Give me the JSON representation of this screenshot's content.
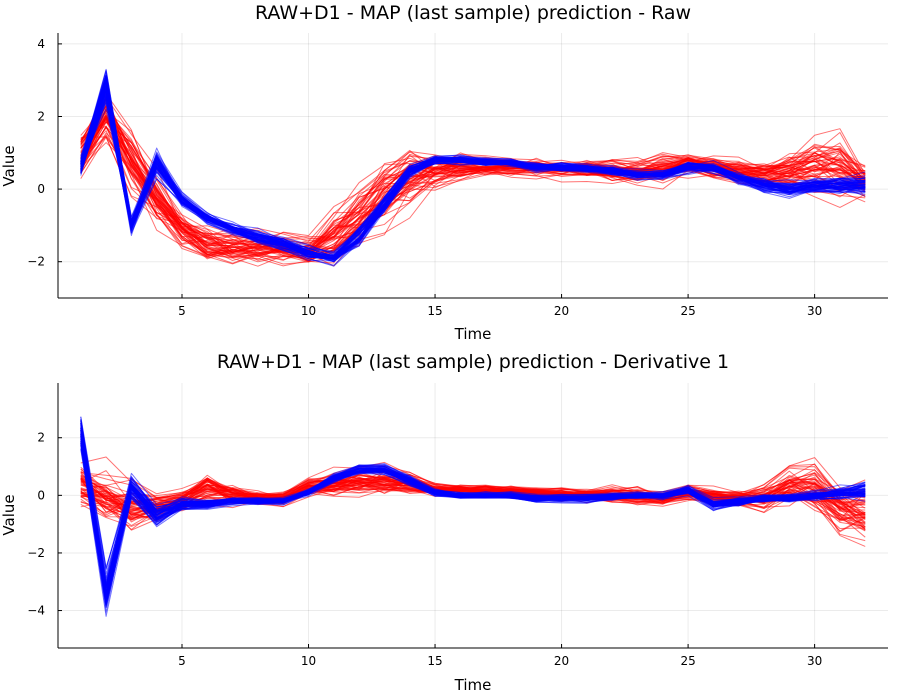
{
  "figure": {
    "background": "#ffffff"
  },
  "colors": {
    "red_series": "#ff0000",
    "blue_series": "#0000ff",
    "grid": "#ebebeb",
    "axis": "#000000"
  },
  "chart_data": [
    {
      "type": "line",
      "title": "RAW+D1 - MAP (last sample) prediction - Raw",
      "xlabel": "Time",
      "ylabel": "Value",
      "xlim": [
        0.1,
        32.9
      ],
      "ylim": [
        -3.0,
        4.3
      ],
      "xticks": [
        5,
        10,
        15,
        20,
        25,
        30
      ],
      "yticks": [
        -2,
        0,
        2,
        4
      ],
      "grid": true,
      "legend": "none",
      "x": [
        1,
        2,
        3,
        4,
        5,
        6,
        7,
        8,
        9,
        10,
        11,
        12,
        13,
        14,
        15,
        16,
        17,
        18,
        19,
        20,
        21,
        22,
        23,
        24,
        25,
        26,
        27,
        28,
        29,
        30,
        31,
        32
      ],
      "series": [
        {
          "color": "#ff0000",
          "count": 60,
          "center": [
            0.9,
            2.0,
            0.8,
            -0.3,
            -1.1,
            -1.5,
            -1.6,
            -1.6,
            -1.6,
            -1.7,
            -1.3,
            -0.7,
            -0.1,
            0.3,
            0.5,
            0.6,
            0.6,
            0.6,
            0.6,
            0.55,
            0.55,
            0.5,
            0.5,
            0.55,
            0.7,
            0.6,
            0.5,
            0.4,
            0.5,
            0.7,
            0.6,
            0.2
          ],
          "spread": [
            0.9,
            0.8,
            1.0,
            0.8,
            0.6,
            0.6,
            0.5,
            0.5,
            0.5,
            0.5,
            0.8,
            1.0,
            1.0,
            0.9,
            0.6,
            0.45,
            0.35,
            0.3,
            0.3,
            0.3,
            0.3,
            0.35,
            0.4,
            0.4,
            0.35,
            0.35,
            0.35,
            0.45,
            0.6,
            0.9,
            1.0,
            0.55
          ]
        },
        {
          "color": "#0000ff",
          "count": 60,
          "center": [
            0.6,
            2.8,
            -1.0,
            0.7,
            -0.3,
            -0.8,
            -1.1,
            -1.3,
            -1.5,
            -1.75,
            -1.9,
            -1.3,
            -0.4,
            0.5,
            0.8,
            0.8,
            0.75,
            0.7,
            0.6,
            0.6,
            0.55,
            0.5,
            0.4,
            0.4,
            0.6,
            0.6,
            0.3,
            0.1,
            0.0,
            0.1,
            0.1,
            0.1
          ],
          "spread": [
            0.4,
            0.7,
            0.3,
            0.5,
            0.25,
            0.2,
            0.2,
            0.2,
            0.2,
            0.2,
            0.2,
            0.35,
            0.35,
            0.2,
            0.15,
            0.15,
            0.15,
            0.15,
            0.15,
            0.15,
            0.15,
            0.15,
            0.15,
            0.15,
            0.2,
            0.2,
            0.2,
            0.25,
            0.25,
            0.25,
            0.3,
            0.35
          ]
        }
      ]
    },
    {
      "type": "line",
      "title": "RAW+D1 - MAP (last sample) prediction - Derivative 1",
      "xlabel": "Time",
      "ylabel": "Value",
      "xlim": [
        0.1,
        32.9
      ],
      "ylim": [
        -5.3,
        3.9
      ],
      "xticks": [
        5,
        10,
        15,
        20,
        25,
        30
      ],
      "yticks": [
        -4,
        -2,
        0,
        2
      ],
      "grid": true,
      "legend": "none",
      "x": [
        1,
        2,
        3,
        4,
        5,
        6,
        7,
        8,
        9,
        10,
        11,
        12,
        13,
        14,
        15,
        16,
        17,
        18,
        19,
        20,
        21,
        22,
        23,
        24,
        25,
        26,
        27,
        28,
        29,
        30,
        31,
        32
      ],
      "series": [
        {
          "color": "#ff0000",
          "count": 60,
          "center": [
            0.4,
            0.0,
            -0.4,
            -0.4,
            -0.2,
            0.2,
            0.0,
            -0.1,
            -0.1,
            0.3,
            0.4,
            0.5,
            0.5,
            0.4,
            0.2,
            0.2,
            0.2,
            0.15,
            0.1,
            0.05,
            0.0,
            0.05,
            0.0,
            -0.1,
            0.1,
            0.0,
            -0.1,
            -0.1,
            0.3,
            0.3,
            -0.4,
            -0.6
          ],
          "spread": [
            1.1,
            1.2,
            1.0,
            0.6,
            0.5,
            0.7,
            0.45,
            0.3,
            0.3,
            0.35,
            0.45,
            0.5,
            0.55,
            0.45,
            0.3,
            0.25,
            0.25,
            0.25,
            0.25,
            0.25,
            0.25,
            0.3,
            0.35,
            0.3,
            0.35,
            0.3,
            0.35,
            0.5,
            0.7,
            0.9,
            1.0,
            1.1
          ]
        },
        {
          "color": "#0000ff",
          "count": 60,
          "center": [
            2.2,
            -3.4,
            0.3,
            -0.7,
            -0.3,
            -0.3,
            -0.2,
            -0.2,
            -0.2,
            0.1,
            0.6,
            0.9,
            0.9,
            0.5,
            0.1,
            0.0,
            0.0,
            0.0,
            -0.1,
            -0.1,
            -0.1,
            -0.05,
            0.0,
            0.0,
            0.2,
            -0.3,
            -0.2,
            -0.1,
            -0.1,
            0.0,
            0.1,
            0.2
          ],
          "spread": [
            0.8,
            0.9,
            0.5,
            0.45,
            0.25,
            0.2,
            0.15,
            0.15,
            0.15,
            0.15,
            0.2,
            0.2,
            0.2,
            0.2,
            0.15,
            0.15,
            0.15,
            0.15,
            0.15,
            0.15,
            0.15,
            0.15,
            0.15,
            0.15,
            0.2,
            0.25,
            0.2,
            0.2,
            0.2,
            0.2,
            0.3,
            0.4
          ]
        }
      ]
    }
  ]
}
